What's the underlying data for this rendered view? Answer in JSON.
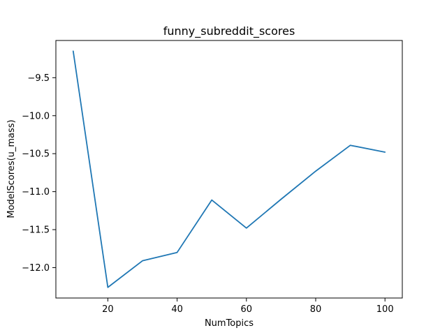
{
  "chart_data": {
    "type": "line",
    "title": "funny_subreddit_scores",
    "xlabel": "NumTopics",
    "ylabel": "ModelScores(u_mass)",
    "series": [
      {
        "name": "u_mass",
        "color": "#1f77b4",
        "x": [
          10,
          20,
          30,
          40,
          50,
          60,
          70,
          80,
          90,
          100
        ],
        "y": [
          -9.15,
          -12.26,
          -11.91,
          -11.8,
          -11.11,
          -11.48,
          -11.1,
          -10.73,
          -10.39,
          -10.48
        ]
      }
    ],
    "xlim": [
      5,
      105
    ],
    "ylim": [
      -12.4,
      -9.01
    ],
    "xticks": [
      20,
      40,
      60,
      80,
      100
    ],
    "xtick_labels": [
      "20",
      "40",
      "60",
      "80",
      "100"
    ],
    "yticks": [
      -9.5,
      -10.0,
      -10.5,
      -11.0,
      -11.5,
      -12.0
    ],
    "ytick_labels": [
      "−9.5",
      "−10.0",
      "−10.5",
      "−11.0",
      "−11.5",
      "−12.0"
    ],
    "grid": false
  }
}
